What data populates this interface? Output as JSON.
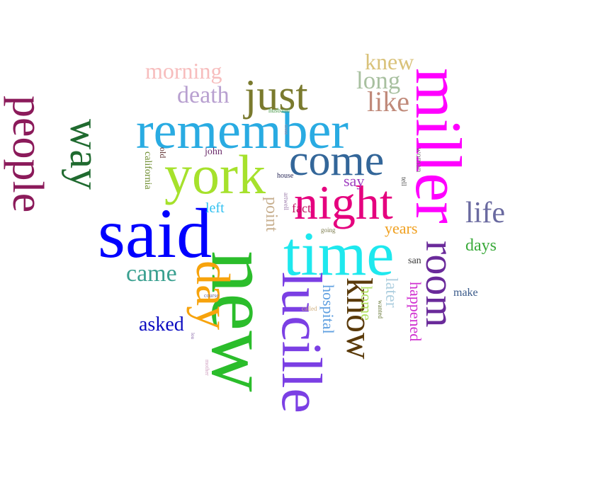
{
  "words": [
    {
      "text": "remember",
      "color": "#29abe2"
    },
    {
      "text": "said",
      "color": "#0000ff"
    },
    {
      "text": "time",
      "color": "#1ee8ee"
    },
    {
      "text": "york",
      "color": "#a6e12c"
    },
    {
      "text": "night",
      "color": "#e5007e"
    },
    {
      "text": "come",
      "color": "#336699"
    },
    {
      "text": "just",
      "color": "#7a7a2e"
    },
    {
      "text": "miller",
      "color": "#ff00ff"
    },
    {
      "text": "new",
      "color": "#2bbd2b"
    },
    {
      "text": "lucille",
      "color": "#7b3fe4"
    },
    {
      "text": "room",
      "color": "#6a2a9a"
    },
    {
      "text": "know",
      "color": "#5a3a0a"
    },
    {
      "text": "day",
      "color": "#f7a30c"
    },
    {
      "text": "people",
      "color": "#8b1a5a"
    },
    {
      "text": "way",
      "color": "#1f6a2f"
    },
    {
      "text": "morning",
      "color": "#f7bdbd"
    },
    {
      "text": "death",
      "color": "#b8a0d0"
    },
    {
      "text": "knew",
      "color": "#d9c27a"
    },
    {
      "text": "long",
      "color": "#a8c0a0"
    },
    {
      "text": "like",
      "color": "#c08a7a"
    },
    {
      "text": "life",
      "color": "#6a6aa0"
    },
    {
      "text": "days",
      "color": "#3aaa3a"
    },
    {
      "text": "came",
      "color": "#3aa090"
    },
    {
      "text": "asked",
      "color": "#0a0ac0"
    },
    {
      "text": "years",
      "color": "#f0a020"
    },
    {
      "text": "say",
      "color": "#a040c0"
    },
    {
      "text": "fact",
      "color": "#c01060"
    },
    {
      "text": "left",
      "color": "#30c0f0"
    },
    {
      "text": "point",
      "color": "#c8b090"
    },
    {
      "text": "hospital",
      "color": "#60a0e0"
    },
    {
      "text": "home",
      "color": "#b0e060"
    },
    {
      "text": "later",
      "color": "#b0d0e0"
    },
    {
      "text": "happened",
      "color": "#d030d0"
    },
    {
      "text": "make",
      "color": "#3a5a8a"
    },
    {
      "text": "san",
      "color": "#3a3a3a"
    },
    {
      "text": "john",
      "color": "#6a2a6a"
    },
    {
      "text": "california",
      "color": "#6a8a2a"
    },
    {
      "text": "old",
      "color": "#5a2a2a"
    },
    {
      "text": "house",
      "color": "#2a2a5a"
    },
    {
      "text": "husband",
      "color": "#4a9a4a"
    },
    {
      "text": "woman",
      "color": "#7a6a7a"
    },
    {
      "text": "tell",
      "color": "#4a4a4a"
    },
    {
      "text": "going",
      "color": "#7a7a4a"
    },
    {
      "text": "artwell",
      "color": "#9a7aaa"
    },
    {
      "text": "called",
      "color": "#d0b080"
    },
    {
      "text": "wanted",
      "color": "#6a7a3a"
    },
    {
      "text": "course",
      "color": "#6a6a9a"
    },
    {
      "text": "lou",
      "color": "#8a6aaa"
    },
    {
      "text": "mother",
      "color": "#d0a0c0"
    },
    {
      "text": "cross",
      "color": "#c08aa0"
    }
  ]
}
